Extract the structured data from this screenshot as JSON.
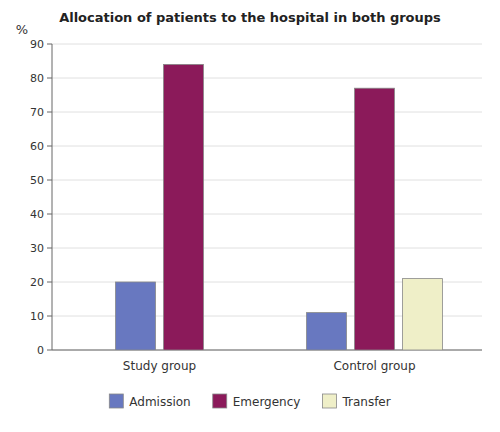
{
  "chart_data": {
    "type": "bar",
    "title": "Allocation of patients to the hospital in both groups",
    "ylabel": "%",
    "categories": [
      "Study group",
      "Control group"
    ],
    "series": [
      {
        "name": "Admission",
        "color": "#6878c0",
        "values": [
          20,
          11
        ]
      },
      {
        "name": "Emergency",
        "color": "#8B1A5A",
        "values": [
          84,
          77
        ]
      },
      {
        "name": "Transfer",
        "color": "#EFEFC8",
        "values": [
          null,
          21
        ]
      }
    ],
    "ylim": [
      0,
      90
    ],
    "yticks": [
      0,
      10,
      20,
      30,
      40,
      50,
      60,
      70,
      80,
      90
    ],
    "grid": true,
    "legend": "bottom"
  }
}
